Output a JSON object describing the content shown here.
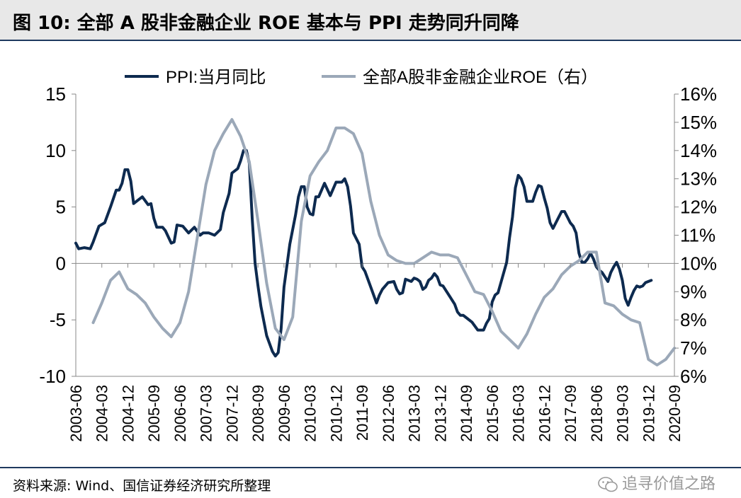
{
  "header": {
    "title": "图 10:  全部 A 股非金融企业 ROE 基本与 PPI 走势同升同降"
  },
  "footer": {
    "source": "资料来源: Wind、国信证券经济研究所整理",
    "watermark": "追寻价值之路"
  },
  "colors": {
    "ppi": "#0d2a4f",
    "roe": "#9ba8b8",
    "frame": "#1f3a5f"
  },
  "icons": {
    "watermark_icon": "wechat-icon"
  },
  "chart_data": {
    "type": "line",
    "x_start": "2003-06",
    "x_tick_labels": [
      "2003-06",
      "2004-03",
      "2004-12",
      "2005-09",
      "2006-06",
      "2007-03",
      "2007-12",
      "2008-09",
      "2009-06",
      "2010-03",
      "2010-12",
      "2011-09",
      "2012-06",
      "2013-03",
      "2013-12",
      "2014-09",
      "2015-06",
      "2016-03",
      "2016-12",
      "2017-09",
      "2018-06",
      "2019-03",
      "2019-12",
      "2020-09"
    ],
    "y_left": {
      "ylim": [
        -10,
        15
      ],
      "ticks": [
        "15",
        "10",
        "5",
        "0",
        "-5",
        "-10"
      ],
      "tick_values": [
        15,
        10,
        5,
        0,
        -5,
        -10
      ]
    },
    "y_right": {
      "ylim": [
        6,
        16
      ],
      "ticks": [
        "16%",
        "15%",
        "14%",
        "13%",
        "12%",
        "11%",
        "10%",
        "9%",
        "8%",
        "7%",
        "6%"
      ],
      "tick_values": [
        16,
        15,
        14,
        13,
        12,
        11,
        10,
        9,
        8,
        7,
        6
      ]
    },
    "legend": {
      "position": "top"
    },
    "series": [
      {
        "name": "PPI:当月同比",
        "axis": "left",
        "points": [
          [
            "2003-06",
            1.8
          ],
          [
            "2003-07",
            1.3
          ],
          [
            "2003-09",
            1.4
          ],
          [
            "2003-11",
            1.3
          ],
          [
            "2003-12",
            1.9
          ],
          [
            "2004-02",
            3.3
          ],
          [
            "2004-04",
            3.6
          ],
          [
            "2004-06",
            5.0
          ],
          [
            "2004-08",
            6.5
          ],
          [
            "2004-09",
            6.5
          ],
          [
            "2004-10",
            7.1
          ],
          [
            "2004-11",
            8.3
          ],
          [
            "2004-12",
            8.3
          ],
          [
            "2005-01",
            7.3
          ],
          [
            "2005-02",
            5.3
          ],
          [
            "2005-03",
            5.5
          ],
          [
            "2005-05",
            5.9
          ],
          [
            "2005-07",
            5.2
          ],
          [
            "2005-08",
            5.3
          ],
          [
            "2005-09",
            4.0
          ],
          [
            "2005-10",
            3.2
          ],
          [
            "2005-12",
            3.2
          ],
          [
            "2006-01",
            2.9
          ],
          [
            "2006-03",
            1.8
          ],
          [
            "2006-04",
            1.9
          ],
          [
            "2006-05",
            3.4
          ],
          [
            "2006-07",
            3.3
          ],
          [
            "2006-09",
            2.7
          ],
          [
            "2006-11",
            3.2
          ],
          [
            "2007-01",
            2.5
          ],
          [
            "2007-02",
            2.7
          ],
          [
            "2007-04",
            2.7
          ],
          [
            "2007-06",
            2.5
          ],
          [
            "2007-08",
            3.0
          ],
          [
            "2007-09",
            4.5
          ],
          [
            "2007-11",
            6.2
          ],
          [
            "2007-12",
            8.0
          ],
          [
            "2008-02",
            8.4
          ],
          [
            "2008-03",
            9.1
          ],
          [
            "2008-04",
            10.0
          ],
          [
            "2008-05",
            10.0
          ],
          [
            "2008-06",
            8.9
          ],
          [
            "2008-07",
            4.0
          ],
          [
            "2008-08",
            0.0
          ],
          [
            "2008-09",
            -2.0
          ],
          [
            "2008-10",
            -3.8
          ],
          [
            "2008-12",
            -6.4
          ],
          [
            "2009-02",
            -7.8
          ],
          [
            "2009-03",
            -8.2
          ],
          [
            "2009-04",
            -7.9
          ],
          [
            "2009-05",
            -5.8
          ],
          [
            "2009-06",
            -2.1
          ],
          [
            "2009-08",
            1.7
          ],
          [
            "2009-10",
            4.3
          ],
          [
            "2009-11",
            5.9
          ],
          [
            "2009-12",
            6.8
          ],
          [
            "2010-01",
            6.8
          ],
          [
            "2010-02",
            5.0
          ],
          [
            "2010-03",
            4.4
          ],
          [
            "2010-04",
            4.3
          ],
          [
            "2010-05",
            5.9
          ],
          [
            "2010-06",
            5.9
          ],
          [
            "2010-08",
            7.1
          ],
          [
            "2010-10",
            6.0
          ],
          [
            "2010-12",
            7.2
          ],
          [
            "2011-02",
            7.2
          ],
          [
            "2011-03",
            7.5
          ],
          [
            "2011-04",
            6.8
          ],
          [
            "2011-05",
            5.1
          ],
          [
            "2011-06",
            2.7
          ],
          [
            "2011-08",
            1.7
          ],
          [
            "2011-09",
            -0.3
          ],
          [
            "2011-10",
            -0.7
          ],
          [
            "2011-12",
            -2.1
          ],
          [
            "2012-02",
            -3.5
          ],
          [
            "2012-03",
            -2.8
          ],
          [
            "2012-04",
            -2.3
          ],
          [
            "2012-06",
            -1.7
          ],
          [
            "2012-08",
            -1.6
          ],
          [
            "2012-09",
            -2.3
          ],
          [
            "2012-10",
            -2.7
          ],
          [
            "2012-11",
            -2.6
          ],
          [
            "2012-12",
            -1.4
          ],
          [
            "2013-02",
            -1.6
          ],
          [
            "2013-03",
            -1.3
          ],
          [
            "2013-04",
            -1.4
          ],
          [
            "2013-05",
            -1.6
          ],
          [
            "2013-06",
            -2.3
          ],
          [
            "2013-07",
            -2.1
          ],
          [
            "2013-08",
            -1.5
          ],
          [
            "2013-09",
            -1.3
          ],
          [
            "2013-10",
            -0.9
          ],
          [
            "2013-11",
            -1.2
          ],
          [
            "2013-12",
            -1.9
          ],
          [
            "2014-01",
            -2.0
          ],
          [
            "2014-03",
            -2.8
          ],
          [
            "2014-05",
            -3.6
          ],
          [
            "2014-06",
            -4.3
          ],
          [
            "2014-07",
            -4.6
          ],
          [
            "2014-08",
            -4.6
          ],
          [
            "2014-09",
            -4.8
          ],
          [
            "2014-11",
            -5.2
          ],
          [
            "2015-01",
            -5.9
          ],
          [
            "2015-02",
            -5.9
          ],
          [
            "2015-03",
            -5.9
          ],
          [
            "2015-04",
            -5.3
          ],
          [
            "2015-05",
            -4.9
          ],
          [
            "2015-06",
            -3.4
          ],
          [
            "2015-07",
            -2.8
          ],
          [
            "2015-08",
            -2.6
          ],
          [
            "2015-09",
            -1.7
          ],
          [
            "2015-11",
            0.1
          ],
          [
            "2015-12",
            2.3
          ],
          [
            "2016-01",
            4.1
          ],
          [
            "2016-02",
            6.7
          ],
          [
            "2016-03",
            7.8
          ],
          [
            "2016-04",
            7.5
          ],
          [
            "2016-05",
            6.8
          ],
          [
            "2016-06",
            5.5
          ],
          [
            "2016-08",
            5.5
          ],
          [
            "2016-09",
            6.3
          ],
          [
            "2016-10",
            6.9
          ],
          [
            "2016-11",
            6.8
          ],
          [
            "2016-12",
            5.8
          ],
          [
            "2017-01",
            4.9
          ],
          [
            "2017-02",
            3.6
          ],
          [
            "2017-03",
            3.1
          ],
          [
            "2017-05",
            4.1
          ],
          [
            "2017-06",
            4.6
          ],
          [
            "2017-07",
            4.6
          ],
          [
            "2017-08",
            4.1
          ],
          [
            "2017-09",
            3.6
          ],
          [
            "2017-10",
            3.3
          ],
          [
            "2017-11",
            2.7
          ],
          [
            "2017-12",
            0.9
          ],
          [
            "2018-01",
            0.1
          ],
          [
            "2018-02",
            0.1
          ],
          [
            "2018-03",
            0.4
          ],
          [
            "2018-04",
            0.9
          ],
          [
            "2018-05",
            0.4
          ],
          [
            "2018-06",
            -0.3
          ],
          [
            "2018-07",
            -0.6
          ],
          [
            "2018-08",
            -0.8
          ],
          [
            "2018-09",
            -1.2
          ],
          [
            "2018-10",
            -1.6
          ],
          [
            "2018-11",
            -0.8
          ],
          [
            "2018-12",
            -0.3
          ],
          [
            "2019-01",
            0.1
          ],
          [
            "2019-02",
            -0.5
          ],
          [
            "2019-03",
            -1.5
          ],
          [
            "2019-04",
            -3.1
          ],
          [
            "2019-05",
            -3.7
          ],
          [
            "2019-06",
            -3.0
          ],
          [
            "2019-07",
            -2.4
          ],
          [
            "2019-08",
            -2.0
          ],
          [
            "2019-09",
            -2.1
          ],
          [
            "2019-10",
            -2.0
          ],
          [
            "2019-11",
            -1.7
          ],
          [
            "2019-12",
            -1.6
          ],
          [
            "2020-01",
            -1.5
          ]
        ]
      },
      {
        "name": "全部A股非金融企业ROE（右）",
        "axis": "right",
        "points": [
          [
            "2003-12",
            7.9
          ],
          [
            "2004-03",
            8.6
          ],
          [
            "2004-06",
            9.4
          ],
          [
            "2004-09",
            9.7
          ],
          [
            "2004-12",
            9.1
          ],
          [
            "2005-03",
            8.9
          ],
          [
            "2005-06",
            8.6
          ],
          [
            "2005-09",
            8.1
          ],
          [
            "2005-12",
            7.7
          ],
          [
            "2006-03",
            7.4
          ],
          [
            "2006-06",
            7.9
          ],
          [
            "2006-09",
            9.0
          ],
          [
            "2006-12",
            10.9
          ],
          [
            "2007-03",
            12.8
          ],
          [
            "2007-06",
            14.0
          ],
          [
            "2007-09",
            14.6
          ],
          [
            "2007-12",
            15.1
          ],
          [
            "2008-03",
            14.5
          ],
          [
            "2008-06",
            13.6
          ],
          [
            "2008-09",
            11.5
          ],
          [
            "2008-12",
            9.3
          ],
          [
            "2009-03",
            7.7
          ],
          [
            "2009-06",
            7.3
          ],
          [
            "2009-09",
            8.1
          ],
          [
            "2009-12",
            11.5
          ],
          [
            "2010-03",
            13.1
          ],
          [
            "2010-06",
            13.6
          ],
          [
            "2010-09",
            14.0
          ],
          [
            "2010-12",
            14.8
          ],
          [
            "2011-03",
            14.8
          ],
          [
            "2011-06",
            14.6
          ],
          [
            "2011-09",
            13.9
          ],
          [
            "2011-12",
            12.2
          ],
          [
            "2012-03",
            11.0
          ],
          [
            "2012-06",
            10.3
          ],
          [
            "2012-09",
            10.1
          ],
          [
            "2012-12",
            10.0
          ],
          [
            "2013-03",
            10.0
          ],
          [
            "2013-06",
            10.2
          ],
          [
            "2013-09",
            10.4
          ],
          [
            "2013-12",
            10.3
          ],
          [
            "2014-03",
            10.3
          ],
          [
            "2014-06",
            10.2
          ],
          [
            "2014-09",
            9.6
          ],
          [
            "2014-12",
            9.0
          ],
          [
            "2015-03",
            8.9
          ],
          [
            "2015-06",
            8.3
          ],
          [
            "2015-09",
            7.6
          ],
          [
            "2015-12",
            7.3
          ],
          [
            "2016-03",
            7.0
          ],
          [
            "2016-06",
            7.5
          ],
          [
            "2016-09",
            8.2
          ],
          [
            "2016-12",
            8.8
          ],
          [
            "2017-03",
            9.1
          ],
          [
            "2017-06",
            9.6
          ],
          [
            "2017-09",
            9.9
          ],
          [
            "2017-12",
            10.1
          ],
          [
            "2018-03",
            10.4
          ],
          [
            "2018-06",
            10.4
          ],
          [
            "2018-09",
            8.6
          ],
          [
            "2018-12",
            8.5
          ],
          [
            "2019-03",
            8.2
          ],
          [
            "2019-06",
            8.0
          ],
          [
            "2019-09",
            7.9
          ],
          [
            "2019-12",
            6.6
          ],
          [
            "2020-03",
            6.4
          ],
          [
            "2020-06",
            6.6
          ],
          [
            "2020-09",
            7.0
          ]
        ]
      }
    ]
  }
}
